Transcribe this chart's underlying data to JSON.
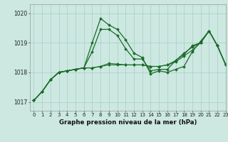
{
  "title": "Graphe pression niveau de la mer (hPa)",
  "bg_color": "#cce8e0",
  "grid_color": "#aacccc",
  "line_color": "#1a6b2a",
  "xlim": [
    -0.5,
    23
  ],
  "ylim": [
    1016.7,
    1020.3
  ],
  "yticks": [
    1017,
    1018,
    1019,
    1020
  ],
  "xticks": [
    0,
    1,
    2,
    3,
    4,
    5,
    6,
    7,
    8,
    9,
    10,
    11,
    12,
    13,
    14,
    15,
    16,
    17,
    18,
    19,
    20,
    21,
    22,
    23
  ],
  "series": [
    [
      1017.05,
      1017.35,
      1017.75,
      1018.0,
      1018.05,
      1018.1,
      1018.15,
      1019.0,
      1019.82,
      1019.6,
      1019.45,
      1019.1,
      1018.65,
      1018.5,
      1017.95,
      1018.05,
      1018.0,
      1018.1,
      1018.2,
      1018.7,
      1019.05,
      1019.4,
      1018.9,
      1018.25
    ],
    [
      1017.05,
      1017.35,
      1017.75,
      1018.0,
      1018.05,
      1018.1,
      1018.15,
      1018.7,
      1019.45,
      1019.45,
      1019.25,
      1018.8,
      1018.45,
      1018.45,
      1018.05,
      1018.1,
      1018.1,
      1018.4,
      1018.6,
      1018.9,
      1019.0,
      1019.4,
      1018.9,
      1018.25
    ],
    [
      1017.05,
      1017.35,
      1017.75,
      1018.0,
      1018.05,
      1018.1,
      1018.15,
      1018.15,
      1018.2,
      1018.25,
      1018.25,
      1018.25,
      1018.25,
      1018.25,
      1018.2,
      1018.2,
      1018.25,
      1018.35,
      1018.55,
      1018.75,
      1019.0,
      1019.4,
      1018.9,
      1018.25
    ],
    [
      1017.05,
      1017.35,
      1017.75,
      1018.0,
      1018.05,
      1018.1,
      1018.15,
      1018.15,
      1018.2,
      1018.3,
      1018.28,
      1018.25,
      1018.25,
      1018.25,
      1018.2,
      1018.2,
      1018.25,
      1018.4,
      1018.65,
      1018.85,
      1019.0,
      1019.4,
      1018.9,
      1018.25
    ]
  ]
}
